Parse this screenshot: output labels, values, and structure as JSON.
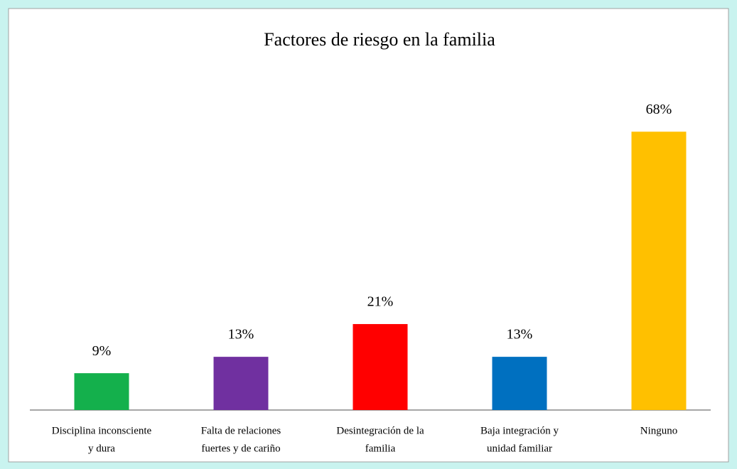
{
  "chart_data": {
    "type": "bar",
    "title": "Factores de riesgo  en la familia",
    "categories": [
      [
        "Disciplina inconsciente",
        "y dura"
      ],
      [
        "Falta de relaciones",
        "fuertes y de cariño"
      ],
      [
        "Desintegración de la",
        "familia"
      ],
      [
        "Baja integración y",
        "unidad familiar"
      ],
      [
        "Ninguno"
      ]
    ],
    "values": [
      9,
      13,
      21,
      13,
      68
    ],
    "value_labels": [
      "9%",
      "13%",
      "21%",
      "13%",
      "68%"
    ],
    "colors": [
      "#14b04c",
      "#7030a0",
      "#ff0000",
      "#0070c0",
      "#ffc000"
    ]
  }
}
